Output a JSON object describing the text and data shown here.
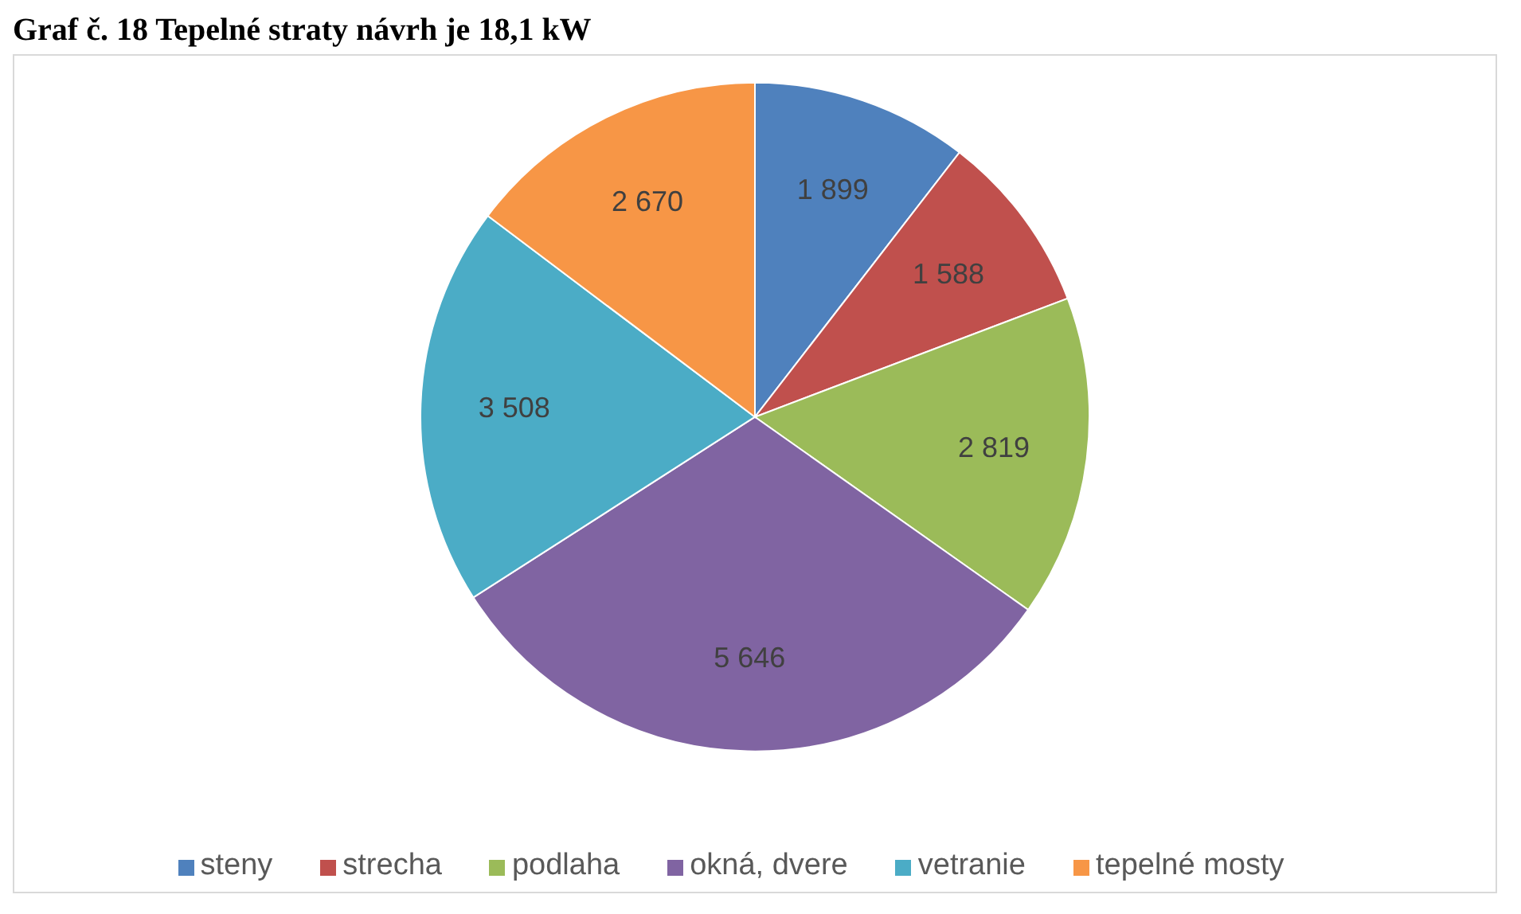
{
  "chart_data": {
    "type": "pie",
    "title": "Graf č. 18 Tepelné straty návrh je 18,1 kW",
    "categories": [
      "steny",
      "strecha",
      "podlaha",
      "okná, dvere",
      "vetranie",
      "tepelné mosty"
    ],
    "values": [
      1899,
      1588,
      2819,
      5646,
      3508,
      2670
    ],
    "value_labels": [
      "1 899",
      "1 588",
      "2 819",
      "5 646",
      "3 508",
      "2 670"
    ],
    "colors": [
      "#4f81bd",
      "#c0504d",
      "#9bbb59",
      "#8064a2",
      "#4bacc6",
      "#f79646"
    ],
    "legend": "bottom"
  }
}
